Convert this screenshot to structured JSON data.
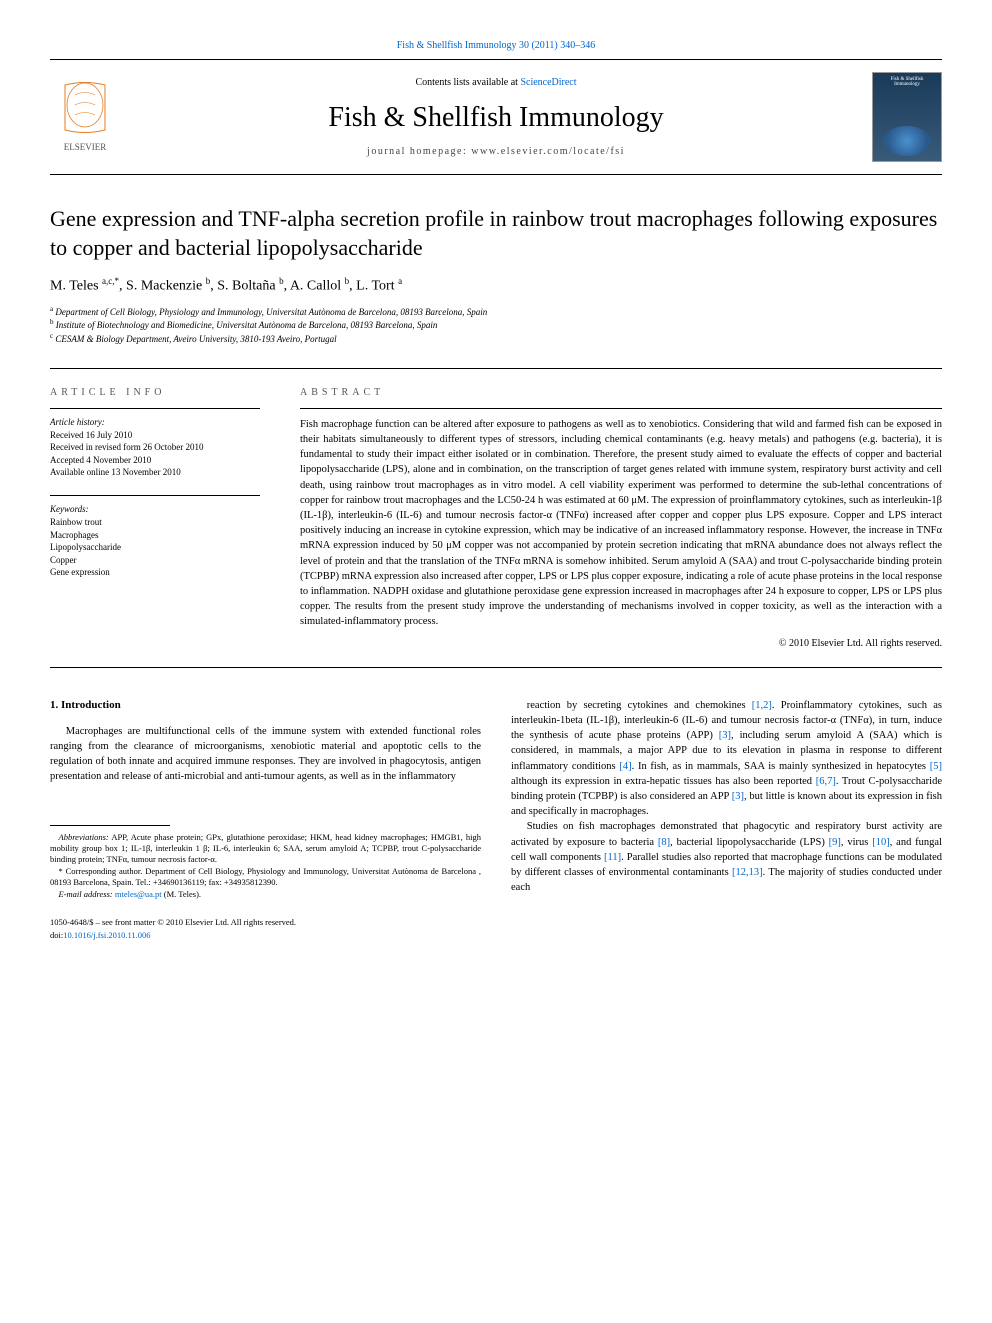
{
  "citation": "Fish & Shellfish Immunology 30 (2011) 340–346",
  "masthead": {
    "contents_prefix": "Contents lists available at ",
    "contents_link": "ScienceDirect",
    "journal": "Fish & Shellfish Immunology",
    "homepage_prefix": "journal homepage: ",
    "homepage": "www.elsevier.com/locate/fsi",
    "cover_label_top": "Fish & Shellfish",
    "cover_label_bottom": "Immunology"
  },
  "title": "Gene expression and TNF-alpha secretion profile in rainbow trout macrophages following exposures to copper and bacterial lipopolysaccharide",
  "authors_html": "M. Teles <sup>a,c,</sup><sup class=\"ast\">*</sup>, S. Mackenzie <sup>b</sup>, S. Boltaña <sup>b</sup>, A. Callol <sup>b</sup>, L. Tort <sup>a</sup>",
  "affiliations": {
    "a": "Department of Cell Biology, Physiology and Immunology, Universitat Autònoma de Barcelona, 08193 Barcelona, Spain",
    "b": "Institute of Biotechnology and Biomedicine, Universitat Autònoma de Barcelona, 08193 Barcelona, Spain",
    "c": "CESAM & Biology Department, Aveiro University, 3810-193 Aveiro, Portugal"
  },
  "article_info_label": "ARTICLE INFO",
  "abstract_label": "ABSTRACT",
  "history": {
    "heading": "Article history:",
    "received": "Received 16 July 2010",
    "revised": "Received in revised form 26 October 2010",
    "accepted": "Accepted 4 November 2010",
    "online": "Available online 13 November 2010"
  },
  "keywords": {
    "heading": "Keywords:",
    "items": [
      "Rainbow trout",
      "Macrophages",
      "Lipopolysaccharide",
      "Copper",
      "Gene expression"
    ]
  },
  "abstract": "Fish macrophage function can be altered after exposure to pathogens as well as to xenobiotics. Considering that wild and farmed fish can be exposed in their habitats simultaneously to different types of stressors, including chemical contaminants (e.g. heavy metals) and pathogens (e.g. bacteria), it is fundamental to study their impact either isolated or in combination. Therefore, the present study aimed to evaluate the effects of copper and bacterial lipopolysaccharide (LPS), alone and in combination, on the transcription of target genes related with immune system, respiratory burst activity and cell death, using rainbow trout macrophages as in vitro model. A cell viability experiment was performed to determine the sub-lethal concentrations of copper for rainbow trout macrophages and the LC50-24 h was estimated at 60 μM. The expression of proinflammatory cytokines, such as interleukin-1β (IL-1β), interleukin-6 (IL-6) and tumour necrosis factor-α (TNFα) increased after copper and copper plus LPS exposure. Copper and LPS interact positively inducing an increase in cytokine expression, which may be indicative of an increased inflammatory response. However, the increase in TNFα mRNA expression induced by 50 μM copper was not accompanied by protein secretion indicating that mRNA abundance does not always reflect the level of protein and that the translation of the TNFα mRNA is somehow inhibited. Serum amyloid A (SAA) and trout C-polysaccharide binding protein (TCPBP) mRNA expression also increased after copper, LPS or LPS plus copper exposure, indicating a role of acute phase proteins in the local response to inflammation. NADPH oxidase and glutathione peroxidase gene expression increased in macrophages after 24 h exposure to copper, LPS or LPS plus copper. The results from the present study improve the understanding of mechanisms involved in copper toxicity, as well as the interaction with a simulated-inflammatory process.",
  "copyright": "© 2010 Elsevier Ltd. All rights reserved.",
  "intro_heading": "1. Introduction",
  "intro_col1": "Macrophages are multifunctional cells of the immune system with extended functional roles ranging from the clearance of microorganisms, xenobiotic material and apoptotic cells to the regulation of both innate and acquired immune responses. They are involved in phagocytosis, antigen presentation and release of anti-microbial and anti-tumour agents, as well as in the inflammatory",
  "intro_col2_p1": "reaction by secreting cytokines and chemokines [1,2]. Proinflammatory cytokines, such as interleukin-1beta (IL-1β), interleukin-6 (IL-6) and tumour necrosis factor-α (TNFα), in turn, induce the synthesis of acute phase proteins (APP) [3], including serum amyloid A (SAA) which is considered, in mammals, a major APP due to its elevation in plasma in response to different inflammatory conditions [4]. In fish, as in mammals, SAA is mainly synthesized in hepatocytes [5] although its expression in extra-hepatic tissues has also been reported [6,7]. Trout C-polysaccharide binding protein (TCPBP) is also considered an APP [3], but little is known about its expression in fish and specifically in macrophages.",
  "intro_col2_p2": "Studies on fish macrophages demonstrated that phagocytic and respiratory burst activity are activated by exposure to bacteria [8], bacterial lipopolysaccharide (LPS) [9], virus [10], and fungal cell wall components [11]. Parallel studies also reported that macrophage functions can be modulated by different classes of environmental contaminants [12,13]. The majority of studies conducted under each",
  "footnotes": {
    "abbrev_label": "Abbreviations:",
    "abbrev": "APP, Acute phase protein; GPx, glutathione peroxidase; HKM, head kidney macrophages; HMGB1, high mobility group box 1; IL-1β, interleukin 1 β; IL-6, interleukin 6; SAA, serum amyloid A; TCPBP, trout C-polysaccharide binding protein; TNFα, tumour necrosis factor-α.",
    "corresp": "* Corresponding author. Department of Cell Biology, Physiology and Immunology, Universitat Autònoma de Barcelona , 08193 Barcelona, Spain. Tel.: +34690136119; fax: +34935812390.",
    "email_label": "E-mail address:",
    "email": "mteles@ua.pt",
    "email_who": "(M. Teles)."
  },
  "footer": {
    "line1": "1050-4648/$ – see front matter © 2010 Elsevier Ltd. All rights reserved.",
    "doi_prefix": "doi:",
    "doi": "10.1016/j.fsi.2010.11.006"
  },
  "colors": {
    "link": "#0066cc",
    "text": "#000000",
    "label": "#555555"
  }
}
